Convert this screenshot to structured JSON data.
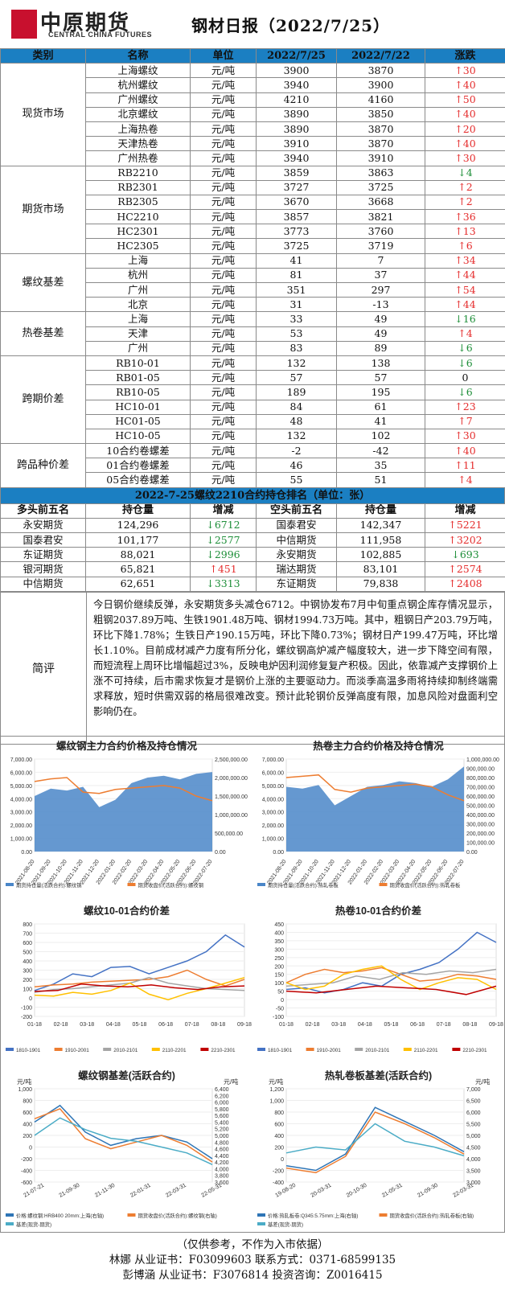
{
  "header": {
    "logo_cn": "中原期货",
    "logo_en": "CENTRAL CHINA FUTURES",
    "title": "钢材日报（2022/7/25）"
  },
  "price_table": {
    "headers": [
      "类别",
      "名称",
      "单位",
      "2022/7/25",
      "2022/7/22",
      "涨跌"
    ],
    "groups": [
      {
        "category": "现货市场",
        "rows": [
          {
            "name": "上海螺纹",
            "unit": "元/吨",
            "v1": "3900",
            "v2": "3870",
            "dir": "up",
            "chg": "30"
          },
          {
            "name": "杭州螺纹",
            "unit": "元/吨",
            "v1": "3940",
            "v2": "3900",
            "dir": "up",
            "chg": "40"
          },
          {
            "name": "广州螺纹",
            "unit": "元/吨",
            "v1": "4210",
            "v2": "4160",
            "dir": "up",
            "chg": "50"
          },
          {
            "name": "北京螺纹",
            "unit": "元/吨",
            "v1": "3890",
            "v2": "3850",
            "dir": "up",
            "chg": "40"
          },
          {
            "name": "上海热卷",
            "unit": "元/吨",
            "v1": "3890",
            "v2": "3870",
            "dir": "up",
            "chg": "20"
          },
          {
            "name": "天津热卷",
            "unit": "元/吨",
            "v1": "3910",
            "v2": "3870",
            "dir": "up",
            "chg": "40"
          },
          {
            "name": "广州热卷",
            "unit": "元/吨",
            "v1": "3940",
            "v2": "3910",
            "dir": "up",
            "chg": "30"
          }
        ]
      },
      {
        "category": "期货市场",
        "rows": [
          {
            "name": "RB2210",
            "unit": "元/吨",
            "v1": "3859",
            "v2": "3863",
            "dir": "down",
            "chg": "4"
          },
          {
            "name": "RB2301",
            "unit": "元/吨",
            "v1": "3727",
            "v2": "3725",
            "dir": "up",
            "chg": "2"
          },
          {
            "name": "RB2305",
            "unit": "元/吨",
            "v1": "3670",
            "v2": "3668",
            "dir": "up",
            "chg": "2"
          },
          {
            "name": "HC2210",
            "unit": "元/吨",
            "v1": "3857",
            "v2": "3821",
            "dir": "up",
            "chg": "36"
          },
          {
            "name": "HC2301",
            "unit": "元/吨",
            "v1": "3773",
            "v2": "3760",
            "dir": "up",
            "chg": "13"
          },
          {
            "name": "HC2305",
            "unit": "元/吨",
            "v1": "3725",
            "v2": "3719",
            "dir": "up",
            "chg": "6"
          }
        ]
      },
      {
        "category": "螺纹基差",
        "rows": [
          {
            "name": "上海",
            "unit": "元/吨",
            "v1": "41",
            "v2": "7",
            "dir": "up",
            "chg": "34"
          },
          {
            "name": "杭州",
            "unit": "元/吨",
            "v1": "81",
            "v2": "37",
            "dir": "up",
            "chg": "44"
          },
          {
            "name": "广州",
            "unit": "元/吨",
            "v1": "351",
            "v2": "297",
            "dir": "up",
            "chg": "54"
          },
          {
            "name": "北京",
            "unit": "元/吨",
            "v1": "31",
            "v2": "-13",
            "dir": "up",
            "chg": "44"
          }
        ]
      },
      {
        "category": "热卷基差",
        "rows": [
          {
            "name": "上海",
            "unit": "元/吨",
            "v1": "33",
            "v2": "49",
            "dir": "down",
            "chg": "16"
          },
          {
            "name": "天津",
            "unit": "元/吨",
            "v1": "53",
            "v2": "49",
            "dir": "up",
            "chg": "4"
          },
          {
            "name": "广州",
            "unit": "元/吨",
            "v1": "83",
            "v2": "89",
            "dir": "down",
            "chg": "6"
          }
        ]
      },
      {
        "category": "跨期价差",
        "rows": [
          {
            "name": "RB10-01",
            "unit": "元/吨",
            "v1": "132",
            "v2": "138",
            "dir": "down",
            "chg": "6"
          },
          {
            "name": "RB01-05",
            "unit": "元/吨",
            "v1": "57",
            "v2": "57",
            "dir": "none",
            "chg": "0"
          },
          {
            "name": "RB10-05",
            "unit": "元/吨",
            "v1": "189",
            "v2": "195",
            "dir": "down",
            "chg": "6"
          },
          {
            "name": "HC10-01",
            "unit": "元/吨",
            "v1": "84",
            "v2": "61",
            "dir": "up",
            "chg": "23"
          },
          {
            "name": "HC01-05",
            "unit": "元/吨",
            "v1": "48",
            "v2": "41",
            "dir": "up",
            "chg": "7"
          },
          {
            "name": "HC10-05",
            "unit": "元/吨",
            "v1": "132",
            "v2": "102",
            "dir": "up",
            "chg": "30"
          }
        ]
      },
      {
        "category": "跨品种价差",
        "rows": [
          {
            "name": "10合约卷螺差",
            "unit": "元/吨",
            "v1": "-2",
            "v2": "-42",
            "dir": "up",
            "chg": "40"
          },
          {
            "name": "01合约卷螺差",
            "unit": "元/吨",
            "v1": "46",
            "v2": "35",
            "dir": "up",
            "chg": "11"
          },
          {
            "name": "05合约卷螺差",
            "unit": "元/吨",
            "v1": "55",
            "v2": "51",
            "dir": "up",
            "chg": "4"
          }
        ]
      }
    ]
  },
  "ranking": {
    "title": "2022-7-25螺纹2210合约持仓排名（单位：张）",
    "headers": [
      "多头前五名",
      "持仓量",
      "增减",
      "空头前五名",
      "持仓量",
      "增减"
    ],
    "rows": [
      {
        "lname": "永安期货",
        "lpos": "124,296",
        "ldir": "down",
        "lchg": "6712",
        "sname": "国泰君安",
        "spos": "142,347",
        "sdir": "up",
        "schg": "5221"
      },
      {
        "lname": "国泰君安",
        "lpos": "101,177",
        "ldir": "down",
        "lchg": "2577",
        "sname": "中信期货",
        "spos": "111,958",
        "sdir": "up",
        "schg": "3202"
      },
      {
        "lname": "东证期货",
        "lpos": "88,021",
        "ldir": "down",
        "lchg": "2996",
        "sname": "永安期货",
        "spos": "102,885",
        "sdir": "down",
        "schg": "693"
      },
      {
        "lname": "银河期货",
        "lpos": "65,821",
        "ldir": "up",
        "lchg": "451",
        "sname": "瑞达期货",
        "spos": "83,101",
        "sdir": "up",
        "schg": "2574"
      },
      {
        "lname": "中信期货",
        "lpos": "62,651",
        "ldir": "down",
        "lchg": "3313",
        "sname": "东证期货",
        "spos": "79,838",
        "sdir": "up",
        "schg": "2408"
      }
    ]
  },
  "commentary": {
    "label": "简评",
    "text": "今日钢价继续反弹，永安期货多头减仓6712。中钢协发布7月中旬重点钢企库存情况显示，粗钢2037.89万吨、生铁1901.48万吨、钢材1994.73万吨。其中，粗钢日产203.79万吨，环比下降1.78%；生铁日产190.15万吨，环比下降0.73%；钢材日产199.47万吨，环比增长1.10%。目前成材减产力度有所分化，螺纹钢高炉减产幅度较大，进一步下降空间有限，而短流程上周环比增幅超过3%，反映电炉因利润修复复产积极。因此，依靠减产支撑钢价上涨不可持续，后市需求恢复才是钢价上涨的主要驱动力。而淡季高温多雨将持续抑制终端需求释放，短时供需双弱的格局很难改变。预计此轮钢价反弹高度有限，加息风险对盘面利空影响仍在。"
  },
  "chart_data": [
    {
      "type": "area",
      "title": "螺纹钢主力合约价格及持仓情况",
      "y_left_ticks": [
        "7,000.00",
        "6,000.00",
        "5,000.00",
        "4,000.00",
        "3,000.00",
        "2,000.00",
        "1,000.00",
        "0.00"
      ],
      "y_right_ticks": [
        "2,500,000.00",
        "2,000,000.00",
        "1,500,000.00",
        "1,000,000.00",
        "500,000.00",
        "0.00"
      ],
      "x_ticks": [
        "2021-08-20",
        "2021-09-20",
        "2021-10-20",
        "2021-11-20",
        "2021-12-20",
        "2022-01-20",
        "2022-02-20",
        "2022-03-20",
        "2022-04-20",
        "2022-05-20",
        "2022-06-20",
        "2022-07-20"
      ],
      "series": [
        {
          "name": "期货持仓量(活跃合约):螺纹钢",
          "color": "#4a86c8",
          "values": [
            1500000,
            1700000,
            1650000,
            1750000,
            1200000,
            1400000,
            1850000,
            2000000,
            2050000,
            1950000,
            2100000,
            2150000
          ]
        },
        {
          "name": "期货收盘价(活跃合约):螺纹钢",
          "color": "#ed7d31",
          "values": [
            5300,
            5500,
            5600,
            4500,
            4400,
            4700,
            4800,
            4900,
            5000,
            4800,
            4200,
            3850
          ]
        }
      ]
    },
    {
      "type": "area",
      "title": "热卷主力合约价格及持仓情况",
      "y_left_ticks": [
        "7,000.00",
        "6,000.00",
        "5,000.00",
        "4,000.00",
        "3,000.00",
        "2,000.00",
        "1,000.00",
        "0.00"
      ],
      "y_right_ticks": [
        "1,000,000.00",
        "900,000.00",
        "800,000.00",
        "700,000.00",
        "600,000.00",
        "500,000.00",
        "400,000.00",
        "300,000.00",
        "200,000.00",
        "100,000.00",
        "0.00"
      ],
      "x_ticks": [
        "2021-08-20",
        "2021-09-20",
        "2021-10-20",
        "2021-11-20",
        "2021-12-20",
        "2022-01-20",
        "2022-02-20",
        "2022-03-20",
        "2022-04-20",
        "2022-05-20",
        "2022-06-20",
        "2022-07-20"
      ],
      "series": [
        {
          "name": "期货持仓量(活跃合约):热轧卷板",
          "color": "#4a86c8",
          "values": [
            700000,
            680000,
            720000,
            500000,
            600000,
            700000,
            720000,
            760000,
            740000,
            700000,
            780000,
            920000
          ]
        },
        {
          "name": "期货收盘价(活跃合约):热轧卷板",
          "color": "#ed7d31",
          "values": [
            5600,
            5700,
            5800,
            4700,
            4500,
            4800,
            4900,
            5000,
            5100,
            4900,
            4300,
            3850
          ]
        }
      ]
    },
    {
      "type": "line",
      "title": "螺纹10-01合约价差",
      "y_ticks": [
        "800",
        "700",
        "600",
        "500",
        "400",
        "300",
        "200",
        "100",
        "0",
        "-100",
        "-200"
      ],
      "x_ticks": [
        "01-18",
        "02-18",
        "03-18",
        "04-18",
        "05-18",
        "06-18",
        "07-18",
        "08-18",
        "09-18"
      ],
      "series": [
        {
          "name": "1810-1901",
          "color": "#4472c4",
          "values": [
            80,
            150,
            260,
            230,
            330,
            340,
            260,
            330,
            400,
            500,
            680,
            550
          ]
        },
        {
          "name": "1910-2001",
          "color": "#ed7d31",
          "values": [
            120,
            140,
            150,
            170,
            180,
            190,
            200,
            230,
            300,
            200,
            130,
            200
          ]
        },
        {
          "name": "2010-2101",
          "color": "#a5a5a5",
          "values": [
            60,
            90,
            100,
            120,
            140,
            160,
            220,
            160,
            130,
            100,
            90,
            80
          ]
        },
        {
          "name": "2110-2201",
          "color": "#ffc000",
          "values": [
            30,
            20,
            60,
            40,
            80,
            160,
            40,
            -20,
            50,
            100,
            160,
            220
          ]
        },
        {
          "name": "2210-2301",
          "color": "#c00000",
          "values": [
            70,
            80,
            150,
            130,
            120,
            140,
            110,
            90,
            120,
            130
          ]
        }
      ]
    },
    {
      "type": "line",
      "title": "热卷10-01合约价差",
      "y_ticks": [
        "450",
        "400",
        "350",
        "300",
        "250",
        "200",
        "150",
        "100",
        "50",
        "0",
        "-50",
        "-100"
      ],
      "x_ticks": [
        "01-18",
        "02-18",
        "03-18",
        "04-18",
        "05-18",
        "06-18",
        "07-18",
        "08-18",
        "09-18"
      ],
      "series": [
        {
          "name": "1810-1901",
          "color": "#4472c4",
          "values": [
            60,
            70,
            40,
            60,
            100,
            80,
            150,
            180,
            220,
            300,
            400,
            340
          ]
        },
        {
          "name": "1910-2001",
          "color": "#ed7d31",
          "values": [
            100,
            150,
            180,
            160,
            170,
            190,
            150,
            110,
            120,
            150,
            140,
            120
          ]
        },
        {
          "name": "2010-2101",
          "color": "#a5a5a5",
          "values": [
            80,
            90,
            100,
            140,
            120,
            160,
            150,
            170,
            160,
            180
          ]
        },
        {
          "name": "2110-2201",
          "color": "#ffc000",
          "values": [
            100,
            60,
            80,
            150,
            180,
            200,
            120,
            60,
            100,
            130,
            120,
            60
          ]
        },
        {
          "name": "2210-2301",
          "color": "#c00000",
          "values": [
            50,
            40,
            60,
            80,
            70,
            60,
            30,
            80
          ]
        }
      ]
    },
    {
      "type": "line",
      "title": "螺纹钢基差(活跃合约)",
      "ylabel_left": "元/吨",
      "ylabel_right": "元/吨",
      "y_left_ticks": [
        "1,000",
        "800",
        "600",
        "400",
        "200",
        "0",
        "-200",
        "-400",
        "-600"
      ],
      "y_right_ticks": [
        "6,400",
        "6,200",
        "6,000",
        "5,800",
        "5,600",
        "5,400",
        "5,200",
        "5,000",
        "4,800",
        "4,600",
        "4,400",
        "4,200",
        "4,000",
        "3,800",
        "3,600"
      ],
      "x_ticks": [
        "21-07-21",
        "21-09-30",
        "21-11-30",
        "22-01-31",
        "22-03-31",
        "22-05-31"
      ],
      "series": [
        {
          "name": "价格:螺纹钢:HRB400 20mm:上海(右轴)",
          "color": "#2e75b6",
          "values": [
            5400,
            5900,
            5100,
            4700,
            4900,
            5000,
            4800,
            4300
          ]
        },
        {
          "name": "期货收盘价(活跃合约):螺纹钢(右轴)",
          "color": "#ed7d31",
          "values": [
            5500,
            5800,
            4900,
            4600,
            4800,
            5000,
            4700,
            4200
          ]
        },
        {
          "name": "基差(现货-期货)",
          "color": "#4bacc6",
          "values": [
            200,
            500,
            300,
            150,
            100,
            0,
            -100,
            -300
          ]
        }
      ]
    },
    {
      "type": "line",
      "title": "热轧卷板基差(活跃合约)",
      "ylabel_left": "元/吨",
      "ylabel_right": "元/吨",
      "y_left_ticks": [
        "1,200",
        "1,000",
        "800",
        "600",
        "400",
        "200",
        "0",
        "-200",
        "-400"
      ],
      "y_right_ticks": [
        "7,000",
        "6,500",
        "6,000",
        "5,500",
        "5,000",
        "4,500",
        "4,000",
        "3,500",
        "3,000"
      ],
      "x_ticks": [
        "19-08-20",
        "20-03-31",
        "20-10-30",
        "21-05-31",
        "21-09-30",
        "22-03-31"
      ],
      "series": [
        {
          "name": "价格:热轧板卷:Q345:5.75mm:上海(右轴)",
          "color": "#2e75b6",
          "values": [
            3700,
            3500,
            4200,
            6200,
            5600,
            5000,
            4300
          ]
        },
        {
          "name": "期货收盘价(活跃合约):热轧卷板(右轴)",
          "color": "#ed7d31",
          "values": [
            3600,
            3400,
            4100,
            6000,
            5500,
            4900,
            4200
          ]
        },
        {
          "name": "基差(现货-期货)",
          "color": "#4bacc6",
          "values": [
            100,
            200,
            150,
            600,
            300,
            200,
            50
          ]
        }
      ]
    }
  ],
  "footer": {
    "line1": "（仅供参考，不作为入市依据）",
    "line2": "林娜  从业证书：F03099603  联系方式：0371-68599135",
    "line3": "彭博涵  从业证书：F3076814  投资咨询：Z0016415"
  }
}
